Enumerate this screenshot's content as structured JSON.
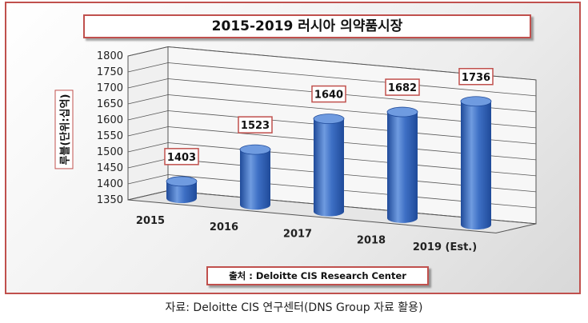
{
  "chart_data": {
    "type": "bar",
    "title": "2015-2019 러시아 의약품시장",
    "ylabel": "루블(단위:십억)",
    "xlabel": "",
    "categories": [
      "2015",
      "2016",
      "2017",
      "2018",
      "2019 (Est.)"
    ],
    "values": [
      1403,
      1523,
      1640,
      1682,
      1736
    ],
    "ylim": [
      1350,
      1800
    ],
    "yticks": [
      1350,
      1400,
      1450,
      1500,
      1550,
      1600,
      1650,
      1700,
      1750,
      1800
    ],
    "grid": true,
    "bar_shape": "cylinder",
    "data_labels": true
  },
  "source_note": "출처 : Deloitte CIS Research Center",
  "caption": "자료: Deloitte CIS 연구센터(DNS Group 자료 활용)",
  "colors": {
    "bar": "#3d6fc4",
    "bar_dark": "#1f4a99",
    "bar_top": "#6f9be0",
    "frame_border": "#c0504d",
    "grid": "#555555"
  }
}
